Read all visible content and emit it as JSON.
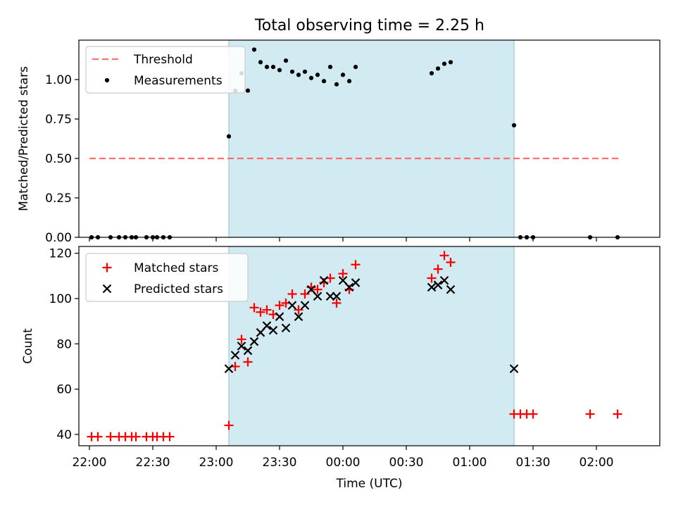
{
  "title": "Total observing time = 2.25 h",
  "colors": {
    "window": "#add8e6",
    "threshold": "#ff6f6f",
    "measurement": "#000000",
    "matched": "#ff0000",
    "predicted": "#000000"
  },
  "chart_data": [
    {
      "type": "scatter",
      "panel": "top",
      "ylabel": "Matched/Predicted stars",
      "xlabel": "",
      "ylim": [
        0,
        1.25
      ],
      "yticks": [
        0.0,
        0.25,
        0.5,
        0.75,
        1.0
      ],
      "ytick_labels": [
        "0.00",
        "0.25",
        "0.50",
        "0.75",
        "1.00"
      ],
      "observing_window": [
        "23:06",
        "01:21"
      ],
      "threshold": {
        "value": 0.5,
        "from": "22:00",
        "to": "02:12"
      },
      "legend": {
        "position": "upper left",
        "entries": [
          "Threshold",
          "Measurements"
        ]
      },
      "series": [
        {
          "name": "Measurements",
          "marker": "dot",
          "points": [
            [
              "22:01",
              0.0
            ],
            [
              "22:04",
              0.0
            ],
            [
              "22:10",
              0.0
            ],
            [
              "22:14",
              0.0
            ],
            [
              "22:17",
              0.0
            ],
            [
              "22:20",
              0.0
            ],
            [
              "22:22",
              0.0
            ],
            [
              "22:27",
              0.0
            ],
            [
              "22:30",
              0.0
            ],
            [
              "22:32",
              0.0
            ],
            [
              "22:35",
              0.0
            ],
            [
              "22:38",
              0.0
            ],
            [
              "23:06",
              0.64
            ],
            [
              "23:09",
              0.93
            ],
            [
              "23:12",
              1.04
            ],
            [
              "23:15",
              0.93
            ],
            [
              "23:18",
              1.19
            ],
            [
              "23:21",
              1.11
            ],
            [
              "23:24",
              1.08
            ],
            [
              "23:27",
              1.08
            ],
            [
              "23:30",
              1.06
            ],
            [
              "23:33",
              1.12
            ],
            [
              "23:36",
              1.05
            ],
            [
              "23:39",
              1.03
            ],
            [
              "23:42",
              1.05
            ],
            [
              "23:45",
              1.01
            ],
            [
              "23:48",
              1.03
            ],
            [
              "23:51",
              0.99
            ],
            [
              "23:54",
              1.08
            ],
            [
              "23:57",
              0.97
            ],
            [
              "00:00",
              1.03
            ],
            [
              "00:03",
              0.99
            ],
            [
              "00:06",
              1.08
            ],
            [
              "00:42",
              1.04
            ],
            [
              "00:45",
              1.07
            ],
            [
              "00:48",
              1.1
            ],
            [
              "00:51",
              1.11
            ],
            [
              "01:21",
              0.71
            ],
            [
              "01:24",
              0.0
            ],
            [
              "01:27",
              0.0
            ],
            [
              "01:30",
              0.0
            ],
            [
              "01:57",
              0.0
            ],
            [
              "02:10",
              0.0
            ]
          ]
        }
      ]
    },
    {
      "type": "scatter",
      "panel": "bottom",
      "xlabel": "Time (UTC)",
      "ylabel": "Count",
      "ylim": [
        35,
        123
      ],
      "yticks": [
        40,
        60,
        80,
        100,
        120
      ],
      "ytick_labels": [
        "40",
        "60",
        "80",
        "100",
        "120"
      ],
      "xticks": [
        "22:00",
        "22:30",
        "23:00",
        "23:30",
        "00:00",
        "00:30",
        "01:00",
        "01:30",
        "02:00"
      ],
      "observing_window": [
        "23:06",
        "01:21"
      ],
      "legend": {
        "position": "upper left",
        "entries": [
          "Matched stars",
          "Predicted stars"
        ]
      },
      "series": [
        {
          "name": "Matched stars",
          "marker": "plus",
          "points": [
            [
              "22:01",
              39
            ],
            [
              "22:04",
              39
            ],
            [
              "22:10",
              39
            ],
            [
              "22:14",
              39
            ],
            [
              "22:17",
              39
            ],
            [
              "22:20",
              39
            ],
            [
              "22:22",
              39
            ],
            [
              "22:27",
              39
            ],
            [
              "22:30",
              39
            ],
            [
              "22:32",
              39
            ],
            [
              "22:35",
              39
            ],
            [
              "22:38",
              39
            ],
            [
              "23:06",
              44
            ],
            [
              "23:09",
              70
            ],
            [
              "23:12",
              82
            ],
            [
              "23:15",
              72
            ],
            [
              "23:18",
              96
            ],
            [
              "23:21",
              94
            ],
            [
              "23:24",
              95
            ],
            [
              "23:27",
              93
            ],
            [
              "23:30",
              97
            ],
            [
              "23:33",
              98
            ],
            [
              "23:36",
              102
            ],
            [
              "23:39",
              95
            ],
            [
              "23:42",
              102
            ],
            [
              "23:45",
              105
            ],
            [
              "23:48",
              104
            ],
            [
              "23:51",
              107
            ],
            [
              "23:54",
              109
            ],
            [
              "23:57",
              98
            ],
            [
              "00:00",
              111
            ],
            [
              "00:03",
              104
            ],
            [
              "00:06",
              115
            ],
            [
              "00:42",
              109
            ],
            [
              "00:45",
              113
            ],
            [
              "00:48",
              119
            ],
            [
              "00:51",
              116
            ],
            [
              "01:21",
              49
            ],
            [
              "01:24",
              49
            ],
            [
              "01:27",
              49
            ],
            [
              "01:30",
              49
            ],
            [
              "01:57",
              49
            ],
            [
              "02:10",
              49
            ]
          ]
        },
        {
          "name": "Predicted stars",
          "marker": "x",
          "points": [
            [
              "23:06",
              69
            ],
            [
              "23:09",
              75
            ],
            [
              "23:12",
              79
            ],
            [
              "23:15",
              77
            ],
            [
              "23:18",
              81
            ],
            [
              "23:21",
              85
            ],
            [
              "23:24",
              88
            ],
            [
              "23:27",
              86
            ],
            [
              "23:30",
              92
            ],
            [
              "23:33",
              87
            ],
            [
              "23:36",
              97
            ],
            [
              "23:39",
              92
            ],
            [
              "23:42",
              97
            ],
            [
              "23:45",
              104
            ],
            [
              "23:48",
              101
            ],
            [
              "23:51",
              108
            ],
            [
              "23:54",
              101
            ],
            [
              "23:57",
              101
            ],
            [
              "00:00",
              108
            ],
            [
              "00:03",
              105
            ],
            [
              "00:06",
              107
            ],
            [
              "00:42",
              105
            ],
            [
              "00:45",
              106
            ],
            [
              "00:48",
              108
            ],
            [
              "00:51",
              104
            ],
            [
              "01:21",
              69
            ]
          ]
        }
      ]
    }
  ]
}
